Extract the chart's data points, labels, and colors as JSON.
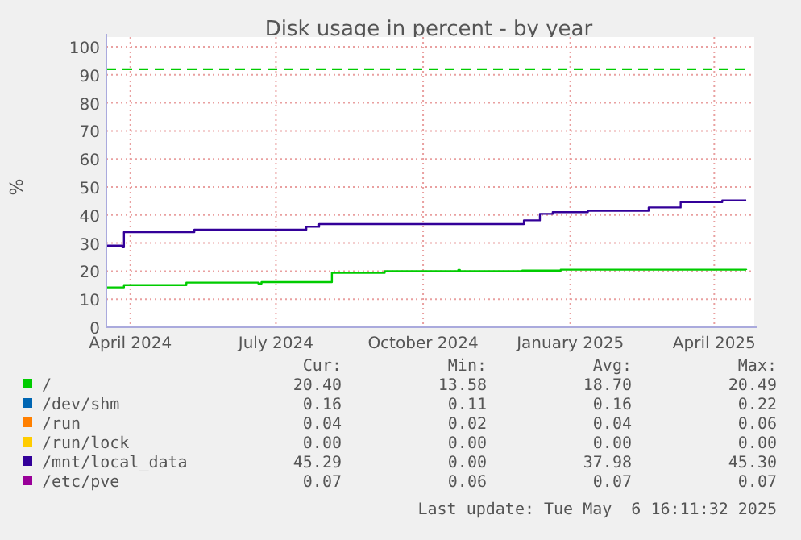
{
  "chart_data": {
    "type": "step",
    "title": "Disk usage in percent - by year",
    "ylabel": "%",
    "xlim": [
      "2024-03-17",
      "2025-04-24"
    ],
    "xticks": [
      {
        "value": "2024-04-01",
        "label": "April 2024"
      },
      {
        "value": "2024-07-01",
        "label": "July 2024"
      },
      {
        "value": "2024-10-01",
        "label": "October 2024"
      },
      {
        "value": "2025-01-01",
        "label": "January 2025"
      },
      {
        "value": "2025-04-01",
        "label": "April 2025"
      }
    ],
    "ylim": [
      0,
      100
    ],
    "yticks": [
      0,
      10,
      20,
      30,
      40,
      50,
      60,
      70,
      80,
      90,
      100
    ],
    "grid": true,
    "legend": "bottom",
    "line_style": "solid",
    "marker": "none",
    "series": [
      {
        "name": "/",
        "color": "#00cc00",
        "x": [
          "2024-03-17",
          "2024-03-28",
          "2024-05-06",
          "2024-06-20",
          "2024-06-22",
          "2024-08-05",
          "2024-09-07",
          "2024-10-23",
          "2024-10-24",
          "2024-12-02",
          "2024-12-26",
          "2025-04-21"
        ],
        "values": [
          14.2,
          15.0,
          15.9,
          15.6,
          16.1,
          19.4,
          20.0,
          20.4,
          20.0,
          20.2,
          20.5,
          20.4
        ]
      },
      {
        "name": "/dev/shm",
        "color": "#0066b3"
      },
      {
        "name": "/run",
        "color": "#ff8000"
      },
      {
        "name": "/run/lock",
        "color": "#ffcc00"
      },
      {
        "name": "/mnt/local_data",
        "color": "#330099",
        "x": [
          "2024-03-17",
          "2024-03-27",
          "2024-03-28",
          "2024-05-11",
          "2024-07-20",
          "2024-07-28",
          "2024-12-03",
          "2024-12-13",
          "2024-12-21",
          "2025-01-12",
          "2025-02-19",
          "2025-03-11",
          "2025-04-06",
          "2025-04-21"
        ],
        "values": [
          29.1,
          28.5,
          33.9,
          34.8,
          35.8,
          36.8,
          38.1,
          40.4,
          41.0,
          41.5,
          42.7,
          44.6,
          45.2,
          45.2
        ]
      },
      {
        "name": "/etc/pve",
        "color": "#990099"
      }
    ],
    "ref_lines": [
      {
        "axis": "y",
        "value": 92,
        "label": null,
        "color": "#00cc00",
        "line_style": "dashed"
      }
    ],
    "annotations": [
      "Cur:",
      "Min:",
      "Avg:",
      "Max:",
      "20.40",
      "13.58",
      "18.70",
      "20.49",
      "0.16",
      "0.11",
      "0.16",
      "0.22",
      "0.04",
      "0.02",
      "0.04",
      "0.06",
      "0.00",
      "0.00",
      "0.00",
      "0.00",
      "45.29",
      "0.00",
      "37.98",
      "45.30",
      "0.07",
      "0.06",
      "0.07",
      "0.07",
      "Last update: Tue May  6 16:11:32 2025"
    ]
  }
}
